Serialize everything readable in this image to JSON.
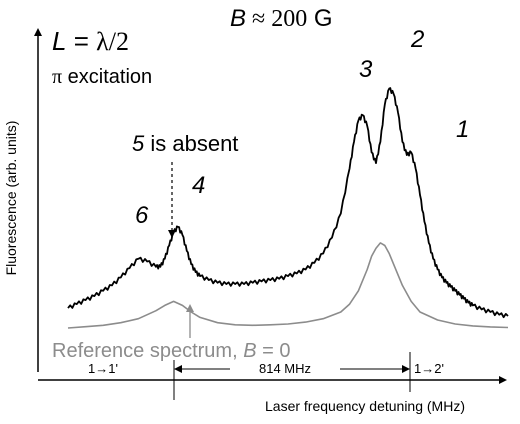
{
  "chart_data": {
    "type": "line",
    "title": "",
    "xlabel": "Laser frequency detuning (MHz)",
    "ylabel": "Fluorescence (arb. units)",
    "x_axis_ticks": [],
    "y_axis_ticks": [],
    "grid": false,
    "annotations": {
      "L_var": "L",
      "L_eq": " = ",
      "L_val": "λ/2",
      "pi_sym": "π",
      "excitation": " excitation",
      "B_var": "B",
      "B_approx": " ≈ ",
      "B_num": "200",
      "B_unit": " G",
      "peak_1": "1",
      "peak_2": "2",
      "peak_3": "3",
      "peak_4": "4",
      "peak_6": "6",
      "absent_num": "5",
      "absent_text": " is absent",
      "reference_text": "Reference spectrum, ",
      "reference_var": "B",
      "reference_eq": " = 0",
      "transition_left": "1→1'",
      "transition_right": "1→2'",
      "spacing_label": "814 MHz"
    },
    "series": [
      {
        "name": "",
        "color": "#000000",
        "stroke_width": 1.8,
        "x": [
          0.0,
          0.02,
          0.04,
          0.06,
          0.08,
          0.1,
          0.12,
          0.14,
          0.16,
          0.18,
          0.2,
          0.21,
          0.22,
          0.23,
          0.24,
          0.25,
          0.26,
          0.27,
          0.28,
          0.29,
          0.3,
          0.32,
          0.34,
          0.36,
          0.38,
          0.4,
          0.42,
          0.44,
          0.46,
          0.48,
          0.5,
          0.52,
          0.54,
          0.56,
          0.58,
          0.6,
          0.62,
          0.64,
          0.65,
          0.66,
          0.67,
          0.68,
          0.69,
          0.7,
          0.71,
          0.72,
          0.73,
          0.74,
          0.75,
          0.76,
          0.77,
          0.78,
          0.79,
          0.8,
          0.81,
          0.82,
          0.83,
          0.84,
          0.85,
          0.86,
          0.87,
          0.88,
          0.89,
          0.9,
          0.91,
          0.92,
          0.94,
          0.96,
          0.98,
          1.0
        ],
        "y": [
          0.075,
          0.09,
          0.105,
          0.12,
          0.14,
          0.16,
          0.19,
          0.225,
          0.26,
          0.25,
          0.23,
          0.23,
          0.26,
          0.31,
          0.36,
          0.38,
          0.35,
          0.29,
          0.24,
          0.21,
          0.195,
          0.18,
          0.17,
          0.165,
          0.165,
          0.165,
          0.17,
          0.175,
          0.18,
          0.185,
          0.195,
          0.205,
          0.22,
          0.245,
          0.28,
          0.34,
          0.43,
          0.6,
          0.7,
          0.78,
          0.8,
          0.76,
          0.66,
          0.62,
          0.7,
          0.84,
          0.9,
          0.88,
          0.81,
          0.7,
          0.65,
          0.66,
          0.6,
          0.5,
          0.4,
          0.32,
          0.26,
          0.22,
          0.19,
          0.17,
          0.155,
          0.14,
          0.125,
          0.11,
          0.095,
          0.085,
          0.07,
          0.06,
          0.05,
          0.045
        ]
      },
      {
        "name": "Reference spectrum",
        "color": "#8c8c8c",
        "stroke_width": 1.6,
        "x": [
          0.0,
          0.04,
          0.08,
          0.12,
          0.16,
          0.2,
          0.22,
          0.24,
          0.26,
          0.28,
          0.3,
          0.34,
          0.38,
          0.42,
          0.46,
          0.5,
          0.54,
          0.58,
          0.62,
          0.64,
          0.66,
          0.68,
          0.69,
          0.7,
          0.71,
          0.72,
          0.73,
          0.74,
          0.76,
          0.78,
          0.8,
          0.84,
          0.88,
          0.92,
          0.96,
          1.0
        ],
        "y": [
          0.0,
          0.005,
          0.01,
          0.02,
          0.035,
          0.065,
          0.085,
          0.1,
          0.085,
          0.06,
          0.04,
          0.02,
          0.012,
          0.01,
          0.012,
          0.015,
          0.022,
          0.035,
          0.06,
          0.09,
          0.14,
          0.22,
          0.27,
          0.3,
          0.32,
          0.31,
          0.28,
          0.24,
          0.16,
          0.1,
          0.06,
          0.03,
          0.015,
          0.008,
          0.004,
          0.002
        ]
      }
    ]
  }
}
